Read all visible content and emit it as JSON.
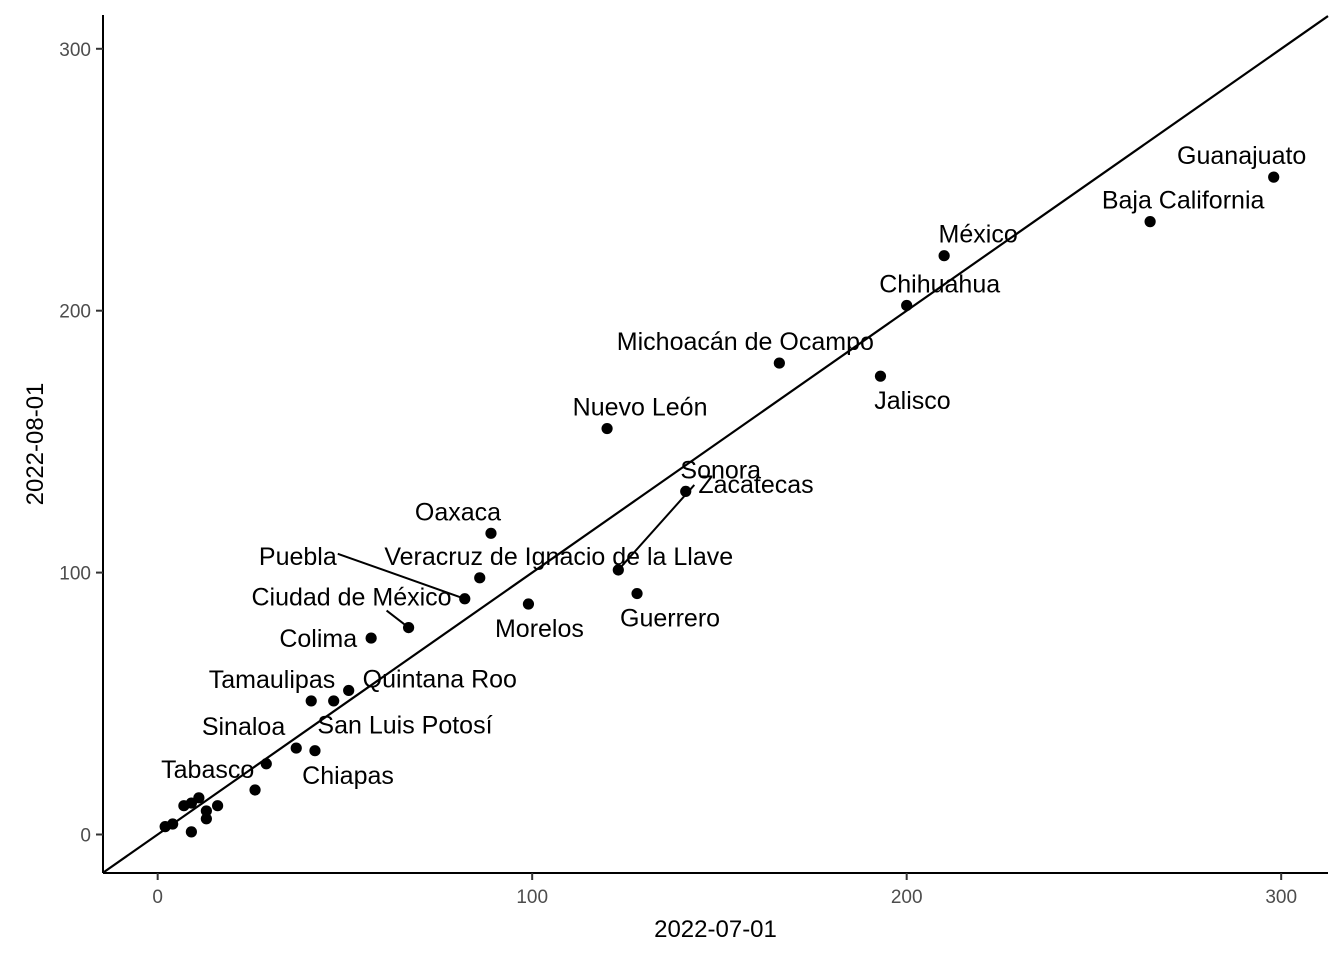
{
  "chart_data": {
    "type": "scatter",
    "title": "",
    "xlabel": "2022-07-01",
    "ylabel": "2022-08-01",
    "xlim": [
      -14.6,
      312.5
    ],
    "ylim": [
      -14.7,
      312.9
    ],
    "xticks": [
      0,
      100,
      200,
      300
    ],
    "yticks": [
      0,
      100,
      200,
      300
    ],
    "x_tick_labels": [
      "0",
      "100",
      "200",
      "300"
    ],
    "y_tick_labels": [
      "0",
      "100",
      "200",
      "300"
    ],
    "grid": false,
    "reference_line": "y = x",
    "point_color": "#000000",
    "points": [
      {
        "name": "Guanajuato",
        "x": 298,
        "y": 251
      },
      {
        "name": "Baja California",
        "x": 265,
        "y": 234
      },
      {
        "name": "México",
        "x": 210,
        "y": 221
      },
      {
        "name": "Chihuahua",
        "x": 200,
        "y": 202
      },
      {
        "name": "Jalisco",
        "x": 193,
        "y": 175
      },
      {
        "name": "Michoacán de Ocampo",
        "x": 166,
        "y": 180
      },
      {
        "name": "Nuevo León",
        "x": 120,
        "y": 155
      },
      {
        "name": "Sonora",
        "x": 141,
        "y": 131
      },
      {
        "name": "Zacatecas",
        "x": 123,
        "y": 101
      },
      {
        "name": "Guerrero",
        "x": 128,
        "y": 92
      },
      {
        "name": "Oaxaca",
        "x": 89,
        "y": 115
      },
      {
        "name": "Veracruz de Ignacio de la Llave",
        "x": 86,
        "y": 98
      },
      {
        "name": "Puebla",
        "x": 82,
        "y": 90
      },
      {
        "name": "Morelos",
        "x": 99,
        "y": 88
      },
      {
        "name": "Ciudad de México",
        "x": 67,
        "y": 79
      },
      {
        "name": "Colima",
        "x": 57,
        "y": 75
      },
      {
        "name": "Quintana Roo",
        "x": 51,
        "y": 55
      },
      {
        "name": "Tamaulipas",
        "x": 41,
        "y": 51
      },
      {
        "name": "",
        "x": 47,
        "y": 51
      },
      {
        "name": "San Luis Potosí",
        "x": 42,
        "y": 32
      },
      {
        "name": "Sinaloa",
        "x": 37,
        "y": 33
      },
      {
        "name": "Chiapas",
        "x": 26,
        "y": 17
      },
      {
        "name": "Tabasco",
        "x": 29,
        "y": 27
      },
      {
        "name": "",
        "x": 16,
        "y": 11
      },
      {
        "name": "",
        "x": 13,
        "y": 9
      },
      {
        "name": "",
        "x": 13,
        "y": 6
      },
      {
        "name": "",
        "x": 11,
        "y": 14
      },
      {
        "name": "",
        "x": 9,
        "y": 12
      },
      {
        "name": "",
        "x": 7,
        "y": 11
      },
      {
        "name": "",
        "x": 9,
        "y": 1
      },
      {
        "name": "",
        "x": 4,
        "y": 4
      },
      {
        "name": "",
        "x": 2,
        "y": 3
      }
    ]
  }
}
